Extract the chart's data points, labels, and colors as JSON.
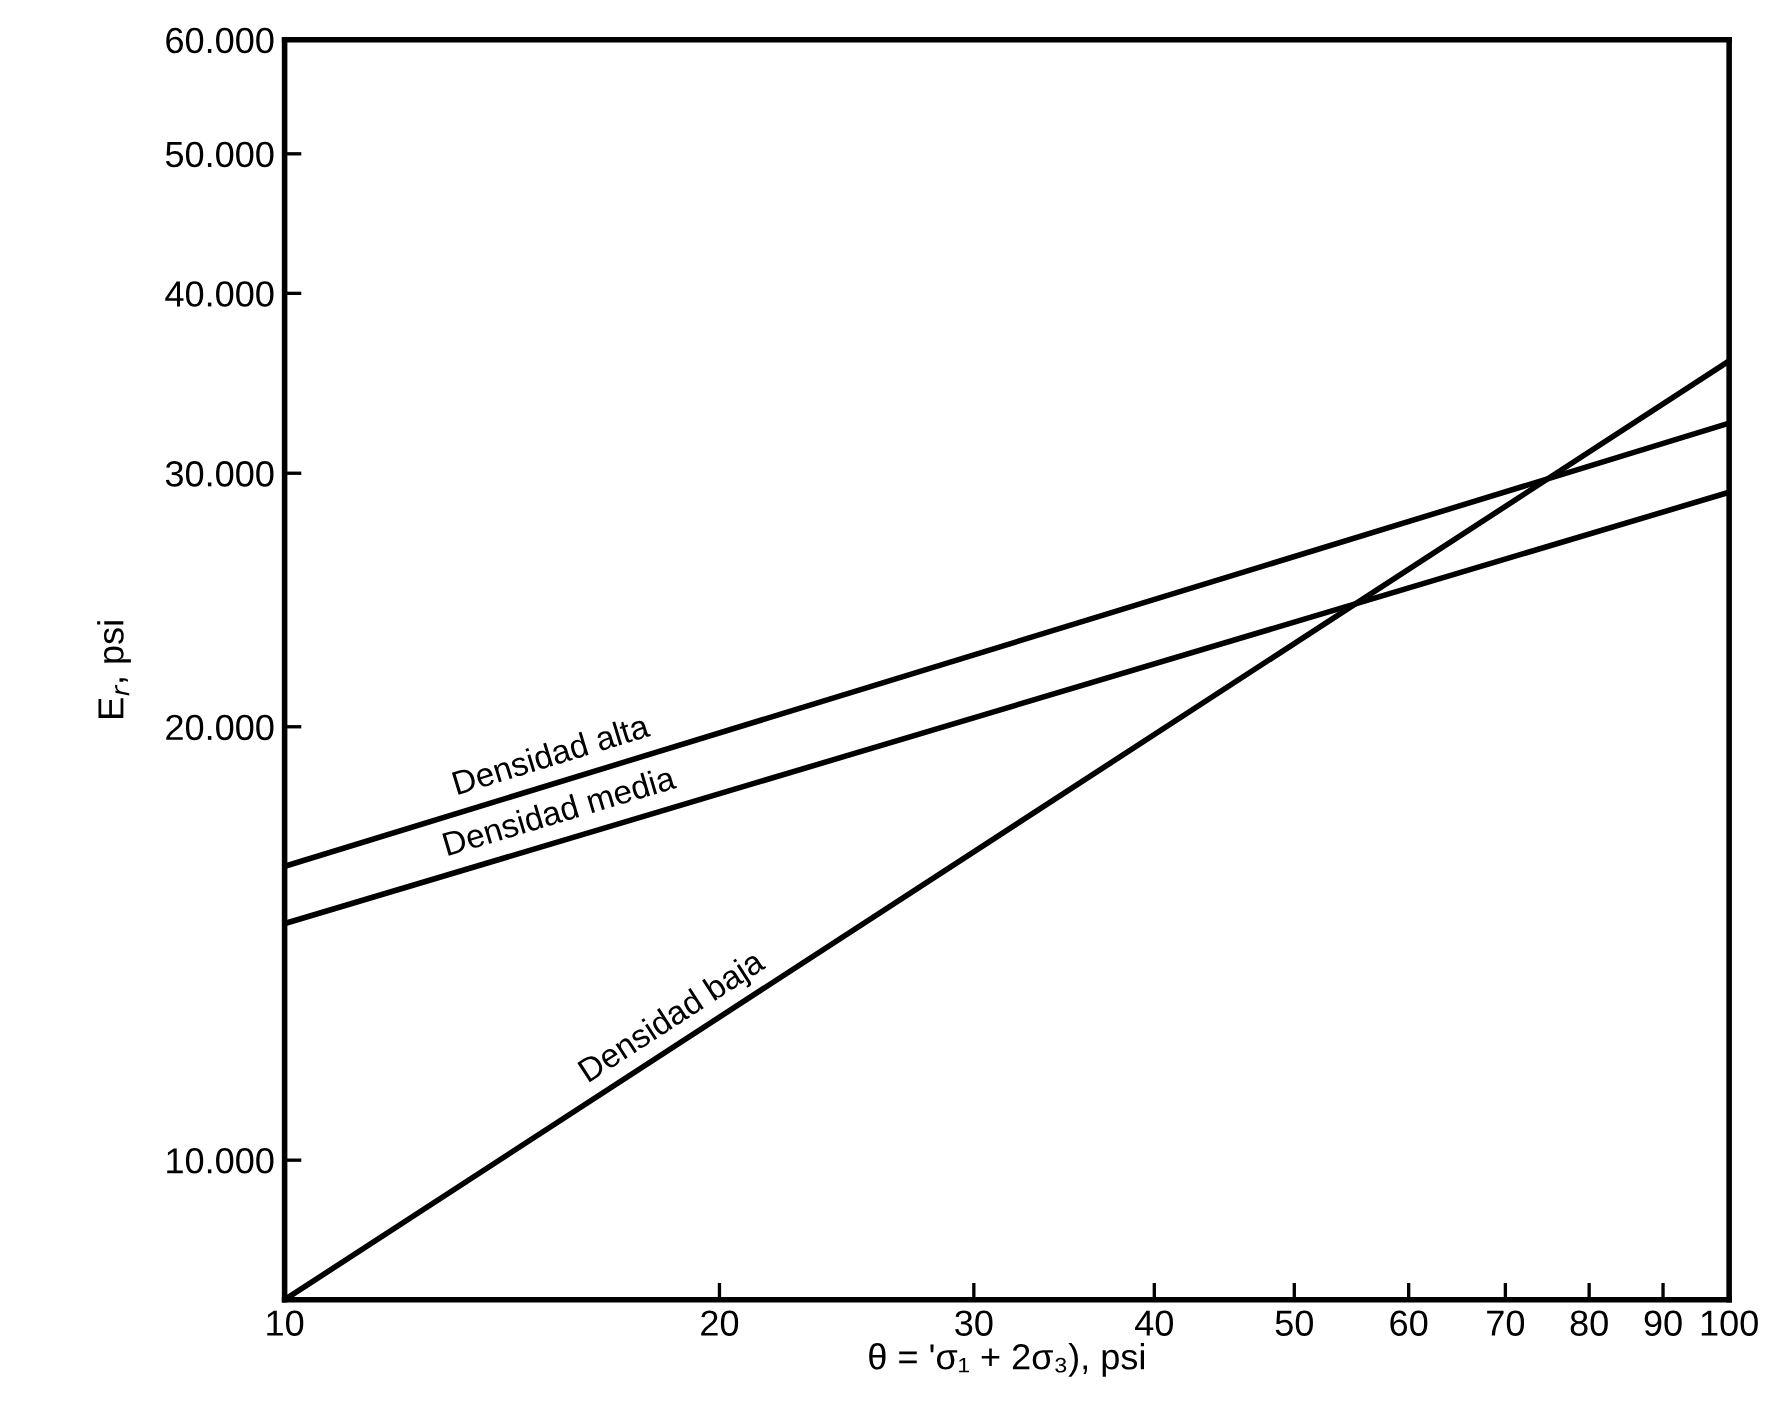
{
  "chart_data": {
    "type": "line",
    "xlabel": "θ = 'σ₁ + 2σ₃), psi",
    "ylabel": "E$_{r}$, psi",
    "log": "xy",
    "x": [
      10,
      100
    ],
    "series": [
      {
        "color": "#000000",
        "values": [
          16000,
          32500
        ]
      },
      {
        "color": "#000000",
        "values": [
          14600,
          29100
        ]
      },
      {
        "color": "#000000",
        "values": [
          8000,
          35900
        ]
      }
    ],
    "xlim": [
      10,
      100
    ],
    "xticks": [
      10,
      20,
      30,
      40,
      50,
      60,
      70,
      80,
      90,
      100
    ],
    "ylim": [
      8000,
      60000
    ],
    "yticks": [
      {
        "value": 10000,
        "label": "10.000"
      },
      {
        "value": 20000,
        "label": "20.000"
      },
      {
        "value": 30000,
        "label": "30.000"
      },
      {
        "value": 40000,
        "label": "40.000"
      },
      {
        "value": 50000,
        "label": "50.000"
      },
      {
        "value": 60000,
        "label": "60.000"
      }
    ],
    "annotations": [
      {
        "text": "Densidad alta",
        "x": 15.4,
        "y": 18270
      },
      {
        "text": "Densidad media",
        "x": 15.6,
        "y": 16690
      },
      {
        "text": "Densidad baja",
        "x": 18.8,
        "y": 12070
      }
    ],
    "grid": false,
    "legend": false,
    "marker": "none",
    "line_style": "solid"
  }
}
